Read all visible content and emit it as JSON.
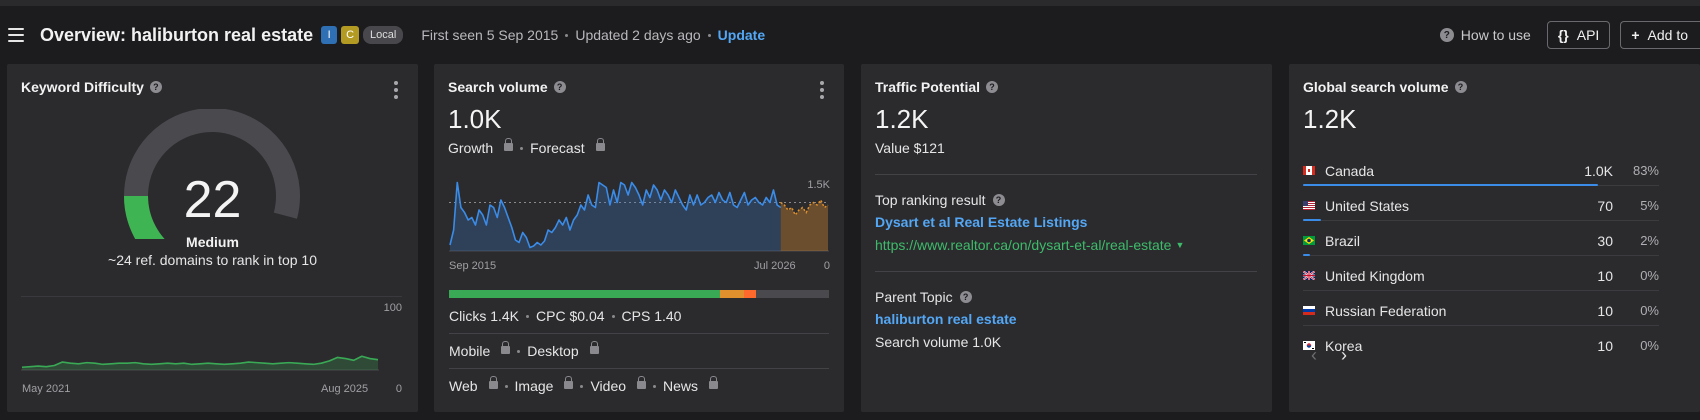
{
  "header": {
    "title": "Overview: haliburton real estate",
    "badges": [
      "I",
      "C",
      "Local"
    ],
    "first_seen": "First seen 5 Sep 2015",
    "updated": "Updated 2 days ago",
    "update_link": "Update",
    "how_to_use": "How to use",
    "api_label": "API",
    "add_to_label": "Add to"
  },
  "kd_card": {
    "title": "Keyword Difficulty",
    "value": "22",
    "level": "Medium",
    "subtitle": "~24 ref. domains to rank in top 10",
    "chart_start": "May 2021",
    "chart_end": "Aug 2025",
    "chart_ymax": "100",
    "chart_ymin": "0"
  },
  "sv_card": {
    "title": "Search volume",
    "value": "1.0K",
    "growth": "Growth",
    "forecast": "Forecast",
    "chart_start": "Sep 2015",
    "chart_end": "Jul 2026",
    "chart_ymax": "1.5K",
    "chart_ymin": "0",
    "clicks": "Clicks 1.4K",
    "cpc": "CPC $0.04",
    "cps": "CPS 1.40",
    "mobile": "Mobile",
    "desktop": "Desktop",
    "web": "Web",
    "image": "Image",
    "video": "Video",
    "news": "News"
  },
  "tp_card": {
    "title": "Traffic Potential",
    "value": "1.2K",
    "value_usd": "Value $121",
    "top_ranking_label": "Top ranking result",
    "top_result_title": "Dysart et al Real Estate Listings",
    "top_result_url": "https://www.realtor.ca/on/dysart-et-al/real-estate",
    "parent_topic_label": "Parent Topic",
    "parent_topic": "haliburton real estate",
    "parent_volume": "Search volume 1.0K"
  },
  "gsv_card": {
    "title": "Global search volume",
    "value": "1.2K",
    "countries": [
      {
        "name": "Canada",
        "volume": "1.0K",
        "pct": "83%",
        "share": 0.83
      },
      {
        "name": "United States",
        "volume": "70",
        "pct": "5%",
        "share": 0.05
      },
      {
        "name": "Brazil",
        "volume": "30",
        "pct": "2%",
        "share": 0.02
      },
      {
        "name": "United Kingdom",
        "volume": "10",
        "pct": "0%",
        "share": 0.0
      },
      {
        "name": "Russian Federation",
        "volume": "10",
        "pct": "0%",
        "share": 0.0
      },
      {
        "name": "Korea",
        "volume": "10",
        "pct": "0%",
        "share": 0.0
      }
    ]
  },
  "chart_data": [
    {
      "type": "line",
      "title": "",
      "x_start": "May 2021",
      "x_end": "Aug 2025",
      "ylim": [
        0,
        100
      ],
      "values": [
        3,
        4,
        5,
        4,
        6,
        12,
        10,
        9,
        11,
        10,
        8,
        9,
        10,
        10,
        11,
        9,
        8,
        9,
        10,
        9,
        10,
        8,
        9,
        10,
        9,
        8,
        9,
        10,
        12,
        11,
        10,
        9,
        10,
        11,
        10,
        9,
        8,
        10,
        14,
        20,
        18,
        15,
        22,
        18,
        16
      ]
    },
    {
      "type": "line",
      "title": "",
      "x_start": "Sep 2015",
      "x_end": "Jul 2026",
      "ylim": [
        0,
        1500
      ],
      "reference_value": 950,
      "values": [
        100,
        400,
        1350,
        850,
        750,
        600,
        650,
        500,
        800,
        700,
        500,
        900,
        850,
        650,
        1000,
        850,
        650,
        450,
        200,
        150,
        350,
        250,
        50,
        80,
        150,
        100,
        180,
        400,
        350,
        450,
        600,
        500,
        650,
        400,
        600,
        700,
        900,
        800,
        1100,
        900,
        850,
        1350,
        1300,
        1250,
        900,
        1200,
        950,
        1350,
        1300,
        1100,
        1350,
        1250,
        1100,
        900,
        1200,
        1050,
        1300,
        1200,
        1000,
        1200,
        1100,
        950,
        1200,
        1050,
        900,
        800,
        1100,
        900,
        1100,
        900,
        950,
        1050,
        1100,
        950,
        1150,
        1000,
        950,
        1150,
        900,
        850,
        1000,
        1150,
        900,
        1000,
        1050,
        950,
        900,
        1050,
        950,
        1200,
        900,
        850
      ],
      "forecast": [
        950,
        900,
        800,
        850,
        700,
        800,
        850,
        750,
        900,
        950,
        900,
        1000,
        850,
        900
      ]
    }
  ]
}
